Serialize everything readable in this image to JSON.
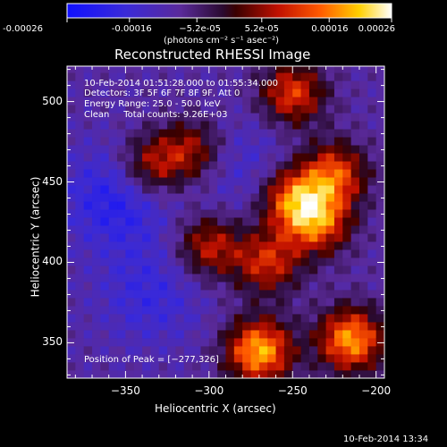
{
  "chart_data": {
    "type": "heatmap",
    "title": "Reconstructed RHESSI Image",
    "xlabel": "Heliocentric X (arcsec)",
    "ylabel": "Heliocentric Y (arcsec)",
    "xlim": [
      -385,
      -195
    ],
    "ylim": [
      328,
      522
    ],
    "x_ticks": [
      -350,
      -300,
      -250,
      -200
    ],
    "x_tick_labels": [
      "−350",
      "−300",
      "−250",
      "−200"
    ],
    "y_ticks": [
      350,
      400,
      450,
      500
    ],
    "y_tick_labels": [
      "350",
      "400",
      "450",
      "500"
    ],
    "colorbar": {
      "colormap": "blue-purple-red-yellow-white",
      "range": [
        -0.00026,
        0.00026
      ],
      "tick_values": [
        -0.00026,
        -0.00016,
        -5.2e-05,
        5.2e-05,
        0.00016,
        0.00026
      ],
      "tick_labels": [
        "-0.00026",
        "-0.00016",
        "−5.2e-05",
        "5.2e-05",
        "0.00016",
        "0.00026"
      ],
      "unit_label": "(photons cm⁻² s⁻¹ asec⁻²)"
    },
    "annotations": [
      "10-Feb-2014 01:51:28.000 to 01:55:34.000",
      "Detectors: 3F 5F 6F 7F 8F 9F, Att 0",
      "Energy Range: 25.0 - 50.0 keV",
      "Clean     Total counts: 9.26E+03"
    ],
    "peak_label": "Position of Peak = [−277,326]",
    "peak_position": [
      -277,
      326
    ],
    "bright_features": [
      {
        "x": -270,
        "y": 345,
        "intensity": 0.000255
      },
      {
        "x": -215,
        "y": 352,
        "intensity": 0.00024
      },
      {
        "x": -235,
        "y": 425,
        "intensity": 0.00019
      },
      {
        "x": -250,
        "y": 440,
        "intensity": 0.00019
      },
      {
        "x": -225,
        "y": 455,
        "intensity": 0.00018
      },
      {
        "x": -265,
        "y": 400,
        "intensity": 0.00015
      },
      {
        "x": -300,
        "y": 410,
        "intensity": 0.00014
      },
      {
        "x": -250,
        "y": 505,
        "intensity": 0.00017
      },
      {
        "x": -335,
        "y": 460,
        "intensity": 0.00014
      },
      {
        "x": -310,
        "y": 470,
        "intensity": 0.00012
      }
    ],
    "dim_features": [
      {
        "x": -355,
        "y": 440,
        "intensity": -0.00012
      },
      {
        "x": -335,
        "y": 380,
        "intensity": -8e-05
      },
      {
        "x": -280,
        "y": 460,
        "intensity": -6e-05
      }
    ]
  },
  "footer_timestamp": "10-Feb-2014 13:34"
}
